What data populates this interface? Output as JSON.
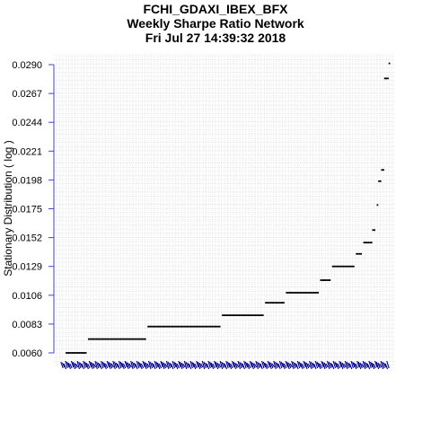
{
  "chart_data": {
    "type": "scatter",
    "title": "FCHI_GDAXI_IBEX_BFX",
    "subtitle": "Weekly  Sharpe Ratio Network",
    "timestamp": "Fri Jul 27 14:39:32 2018",
    "ylabel": "Stationary Distribution ( log )",
    "xlabel": "",
    "ylim": [
      0.0058,
      0.0292
    ],
    "yticks": [
      "0.0060",
      "0.0083",
      "0.0106",
      "0.0129",
      "0.0152",
      "0.0175",
      "0.0198",
      "0.0221",
      "0.0244",
      "0.0267",
      "0.0290"
    ],
    "grid": true,
    "point_color": "#000000",
    "label_color": "#00008B",
    "axis_color": "#4444cc",
    "x_count": 220,
    "series": [
      {
        "levels": [
          {
            "x_from": 4,
            "x_to": 17,
            "y": 0.006
          },
          {
            "x_from": 19,
            "x_to": 57,
            "y": 0.0071
          },
          {
            "x_from": 59,
            "x_to": 107,
            "y": 0.0081
          },
          {
            "x_from": 109,
            "x_to": 136,
            "y": 0.009
          },
          {
            "x_from": 138,
            "x_to": 150,
            "y": 0.01
          },
          {
            "x_from": 152,
            "x_to": 173,
            "y": 0.0108
          },
          {
            "x_from": 175,
            "x_to": 181,
            "y": 0.0118
          },
          {
            "x_from": 183,
            "x_to": 197,
            "y": 0.0129
          },
          {
            "x_from": 199,
            "x_to": 202,
            "y": 0.0139
          },
          {
            "x_from": 204,
            "x_to": 209,
            "y": 0.0148
          },
          {
            "x_from": 210,
            "x_to": 211,
            "y": 0.0158
          },
          {
            "x_from": 213,
            "x_to": 213,
            "y": 0.0178
          },
          {
            "x_from": 214,
            "x_to": 215,
            "y": 0.0197
          },
          {
            "x_from": 216,
            "x_to": 217,
            "y": 0.0206
          },
          {
            "x_from": 218,
            "x_to": 220,
            "y": 0.0279
          },
          {
            "x_from": 221,
            "x_to": 221,
            "y": 0.0291
          }
        ]
      }
    ]
  }
}
